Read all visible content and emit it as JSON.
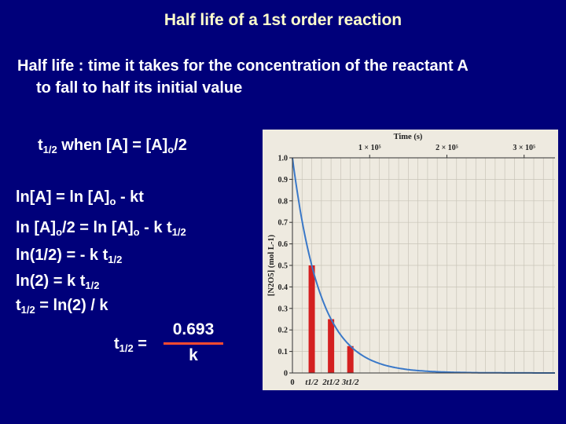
{
  "title": "Half life of a 1st order reaction",
  "definition": {
    "line1": "Half life : time it takes for the concentration of the reactant A",
    "line2": "to fall to half its initial value"
  },
  "condition": {
    "t": "t",
    "half": "1/2",
    "mid": " when [A] = [A]",
    "o": "o",
    "tail": "/2"
  },
  "eq1": {
    "a": "ln[A] = ln [A]",
    "o": "o",
    "b": " - kt"
  },
  "eq2": {
    "a": "ln [A]",
    "o1": "o",
    "b": "/2 = ln [A]",
    "o2": "o",
    "c": " - k t",
    "half": "1/2"
  },
  "eq3": {
    "a": "ln(1/2) = - k t",
    "half": "1/2"
  },
  "eq4": {
    "a": "ln(2) = k t",
    "half": "1/2"
  },
  "eq5": {
    "t": "t",
    "half": "1/2",
    "b": " = ln(2) / k"
  },
  "fraction": {
    "t": "t",
    "half": "1/2",
    "eq": " =",
    "numerator": "0.693",
    "denominator": "k"
  },
  "chart_data": {
    "type": "line",
    "title": "",
    "xlabel": "Time (s)",
    "ylabel": "[N2O5] (mol L-1)",
    "xlim": [
      0,
      340000
    ],
    "ylim": [
      0,
      1.0
    ],
    "top_ticks": [
      {
        "x": 100000,
        "label": "1 × 10⁵"
      },
      {
        "x": 200000,
        "label": "2 × 10⁵"
      },
      {
        "x": 300000,
        "label": "3 × 10⁵"
      }
    ],
    "yticks": [
      0,
      0.1,
      0.2,
      0.3,
      0.4,
      0.5,
      0.6,
      0.7,
      0.8,
      0.9,
      1.0
    ],
    "ytick_labels": [
      "0",
      "0.1",
      "0.2",
      "0.3",
      "0.4",
      "0.5",
      "0.6",
      "0.7",
      "0.8",
      "0.9",
      "1.0"
    ],
    "curve": {
      "initial": 1.0,
      "half_life": 25000
    },
    "bars": [
      {
        "x": 25000,
        "value": 0.5,
        "label": "t1/2"
      },
      {
        "x": 50000,
        "value": 0.25,
        "label": "2t1/2"
      },
      {
        "x": 75000,
        "value": 0.125,
        "label": "3t1/2"
      }
    ],
    "grid": true,
    "colors": {
      "curve": "#3a78c8",
      "bars": "#d42020",
      "panel": "#eeeae0",
      "grid": "#c8c4b8"
    }
  }
}
